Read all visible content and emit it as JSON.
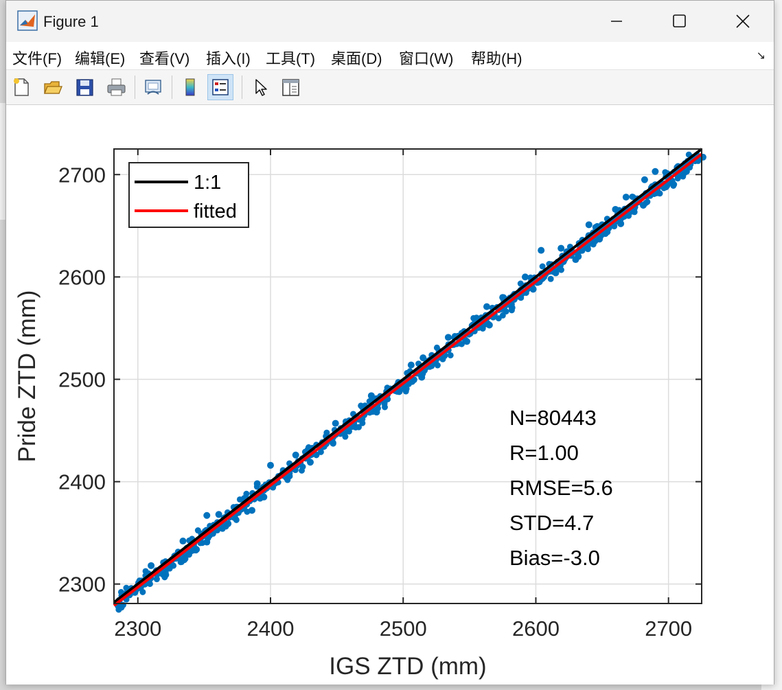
{
  "window": {
    "title": "Figure 1"
  },
  "menu": [
    {
      "label": "文件(F)"
    },
    {
      "label": "编辑(E)"
    },
    {
      "label": "查看(V)"
    },
    {
      "label": "插入(I)"
    },
    {
      "label": "工具(T)"
    },
    {
      "label": "桌面(D)"
    },
    {
      "label": "窗口(W)"
    },
    {
      "label": "帮助(H)"
    }
  ],
  "toolbar": [
    {
      "icon": "new-figure-icon"
    },
    {
      "icon": "open-file-icon"
    },
    {
      "icon": "save-icon"
    },
    {
      "icon": "print-icon"
    },
    {
      "icon": "link-plot-icon"
    },
    {
      "icon": "colorbar-icon"
    },
    {
      "icon": "legend-icon",
      "active": true
    },
    {
      "icon": "pointer-icon"
    },
    {
      "icon": "property-inspector-icon"
    }
  ],
  "chart_data": {
    "type": "scatter",
    "xlabel": "IGS ZTD (mm)",
    "ylabel": "Pride ZTD (mm)",
    "xlim": [
      2282,
      2725
    ],
    "ylim": [
      2281,
      2725
    ],
    "xticks": [
      2300,
      2400,
      2500,
      2600,
      2700
    ],
    "yticks": [
      2300,
      2400,
      2500,
      2600,
      2700
    ],
    "grid": true,
    "legend": {
      "placement": "top-left",
      "entries": [
        {
          "label": "1:1",
          "color": "#000000"
        },
        {
          "label": "fitted",
          "color": "#ff0000"
        }
      ]
    },
    "series": [
      {
        "name": "1:1",
        "kind": "line",
        "x": [
          2282,
          2725
        ],
        "y": [
          2282,
          2725
        ],
        "color": "#000000"
      },
      {
        "name": "fitted",
        "kind": "line",
        "x": [
          2282,
          2725
        ],
        "y": [
          2279,
          2720
        ],
        "color": "#ff0000"
      },
      {
        "kind": "scatter",
        "color": "#0072bd",
        "count": 80443,
        "points": [
          [
            2286,
            2284
          ],
          [
            2292,
            2292
          ],
          [
            2298,
            2293
          ],
          [
            2303,
            2303
          ],
          [
            2309,
            2305
          ],
          [
            2314,
            2313
          ],
          [
            2320,
            2314
          ],
          [
            2326,
            2324
          ],
          [
            2331,
            2326
          ],
          [
            2337,
            2335
          ],
          [
            2342,
            2338
          ],
          [
            2348,
            2346
          ],
          [
            2353,
            2348
          ],
          [
            2359,
            2356
          ],
          [
            2365,
            2360
          ],
          [
            2370,
            2366
          ],
          [
            2376,
            2372
          ],
          [
            2382,
            2378
          ],
          [
            2387,
            2384
          ],
          [
            2393,
            2389
          ],
          [
            2398,
            2395
          ],
          [
            2404,
            2400
          ],
          [
            2410,
            2406
          ],
          [
            2415,
            2412
          ],
          [
            2421,
            2418
          ],
          [
            2426,
            2424
          ],
          [
            2432,
            2429
          ],
          [
            2438,
            2435
          ],
          [
            2443,
            2441
          ],
          [
            2449,
            2446
          ],
          [
            2454,
            2451
          ],
          [
            2460,
            2456
          ],
          [
            2466,
            2462
          ],
          [
            2471,
            2467
          ],
          [
            2477,
            2473
          ],
          [
            2482,
            2480
          ],
          [
            2488,
            2485
          ],
          [
            2494,
            2489
          ],
          [
            2499,
            2496
          ],
          [
            2505,
            2501
          ],
          [
            2510,
            2506
          ],
          [
            2516,
            2513
          ],
          [
            2522,
            2518
          ],
          [
            2527,
            2523
          ],
          [
            2533,
            2529
          ],
          [
            2538,
            2534
          ],
          [
            2544,
            2541
          ],
          [
            2550,
            2545
          ],
          [
            2555,
            2551
          ],
          [
            2561,
            2556
          ],
          [
            2566,
            2562
          ],
          [
            2572,
            2568
          ],
          [
            2578,
            2573
          ],
          [
            2583,
            2580
          ],
          [
            2589,
            2583
          ],
          [
            2594,
            2591
          ],
          [
            2600,
            2596
          ],
          [
            2606,
            2600
          ],
          [
            2611,
            2608
          ],
          [
            2617,
            2612
          ],
          [
            2622,
            2618
          ],
          [
            2628,
            2624
          ],
          [
            2634,
            2629
          ],
          [
            2639,
            2635
          ],
          [
            2645,
            2640
          ],
          [
            2650,
            2646
          ],
          [
            2656,
            2651
          ],
          [
            2662,
            2657
          ],
          [
            2667,
            2664
          ],
          [
            2673,
            2668
          ],
          [
            2678,
            2675
          ],
          [
            2684,
            2679
          ],
          [
            2690,
            2685
          ],
          [
            2695,
            2691
          ],
          [
            2701,
            2697
          ],
          [
            2706,
            2702
          ],
          [
            2712,
            2708
          ],
          [
            2718,
            2714
          ],
          [
            2722,
            2718
          ],
          [
            2321,
            2309
          ],
          [
            2344,
            2334
          ],
          [
            2352,
            2341
          ],
          [
            2368,
            2359
          ],
          [
            2386,
            2372
          ],
          [
            2395,
            2385
          ],
          [
            2412,
            2404
          ],
          [
            2430,
            2419
          ],
          [
            2447,
            2438
          ],
          [
            2462,
            2454
          ],
          [
            2480,
            2468
          ],
          [
            2497,
            2488
          ],
          [
            2514,
            2502
          ],
          [
            2531,
            2523
          ],
          [
            2548,
            2537
          ],
          [
            2565,
            2553
          ],
          [
            2582,
            2570
          ],
          [
            2598,
            2588
          ],
          [
            2615,
            2604
          ],
          [
            2632,
            2620
          ],
          [
            2648,
            2637
          ],
          [
            2664,
            2652
          ],
          [
            2681,
            2670
          ],
          [
            2698,
            2688
          ],
          [
            2712,
            2702
          ],
          [
            2310,
            2318
          ],
          [
            2334,
            2342
          ],
          [
            2361,
            2368
          ],
          [
            2390,
            2398
          ],
          [
            2419,
            2426
          ],
          [
            2449,
            2457
          ],
          [
            2476,
            2484
          ],
          [
            2506,
            2514
          ],
          [
            2534,
            2541
          ],
          [
            2563,
            2571
          ],
          [
            2592,
            2600
          ],
          [
            2619,
            2628
          ],
          [
            2640,
            2651
          ],
          [
            2668,
            2678
          ],
          [
            2690,
            2703
          ],
          [
            2604,
            2626
          ],
          [
            2646,
            2640
          ],
          [
            2655,
            2648
          ],
          [
            2630,
            2617
          ],
          [
            2650,
            2651
          ],
          [
            2660,
            2666
          ],
          [
            2700,
            2700
          ],
          [
            2710,
            2705
          ],
          [
            2726,
            2717
          ],
          [
            2690,
            2690
          ],
          [
            2682,
            2695
          ],
          [
            2575,
            2580
          ],
          [
            2515,
            2521
          ],
          [
            2476,
            2478
          ],
          [
            2400,
            2416
          ],
          [
            2352,
            2367
          ]
        ]
      }
    ],
    "annotations": [
      "N=80443",
      "R=1.00",
      "RMSE=5.6",
      "STD=4.7",
      "Bias=-3.0"
    ]
  }
}
